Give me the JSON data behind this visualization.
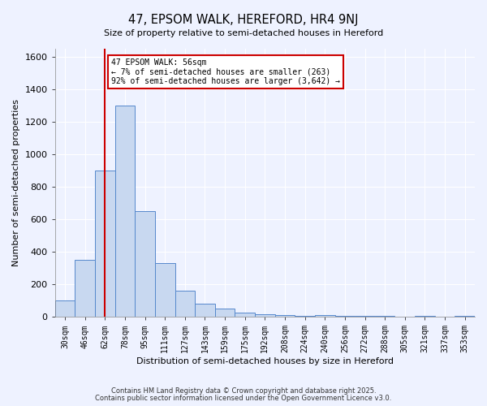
{
  "title": "47, EPSOM WALK, HEREFORD, HR4 9NJ",
  "subtitle": "Size of property relative to semi-detached houses in Hereford",
  "xlabel": "Distribution of semi-detached houses by size in Hereford",
  "ylabel": "Number of semi-detached properties",
  "bar_values": [
    100,
    350,
    900,
    1300,
    650,
    330,
    160,
    80,
    50,
    25,
    15,
    10,
    5,
    10,
    5,
    5,
    5,
    0,
    5,
    0,
    5
  ],
  "bin_labels": [
    "30sqm",
    "46sqm",
    "62sqm",
    "78sqm",
    "95sqm",
    "111sqm",
    "127sqm",
    "143sqm",
    "159sqm",
    "175sqm",
    "192sqm",
    "208sqm",
    "224sqm",
    "240sqm",
    "256sqm",
    "272sqm",
    "288sqm",
    "305sqm",
    "321sqm",
    "337sqm",
    "353sqm"
  ],
  "bar_color": "#c8d8f0",
  "bar_edge_color": "#5588cc",
  "vline_color": "#cc0000",
  "vline_x": 2.0,
  "ylim": [
    0,
    1650
  ],
  "yticks": [
    0,
    200,
    400,
    600,
    800,
    1000,
    1200,
    1400,
    1600
  ],
  "annotation_title": "47 EPSOM WALK: 56sqm",
  "annotation_line1": "← 7% of semi-detached houses are smaller (263)",
  "annotation_line2": "92% of semi-detached houses are larger (3,642) →",
  "annotation_box_facecolor": "#ffffff",
  "annotation_box_edgecolor": "#cc0000",
  "footer1": "Contains HM Land Registry data © Crown copyright and database right 2025.",
  "footer2": "Contains public sector information licensed under the Open Government Licence v3.0.",
  "bg_color": "#eef2ff",
  "grid_color": "#ffffff",
  "n_bars": 21
}
